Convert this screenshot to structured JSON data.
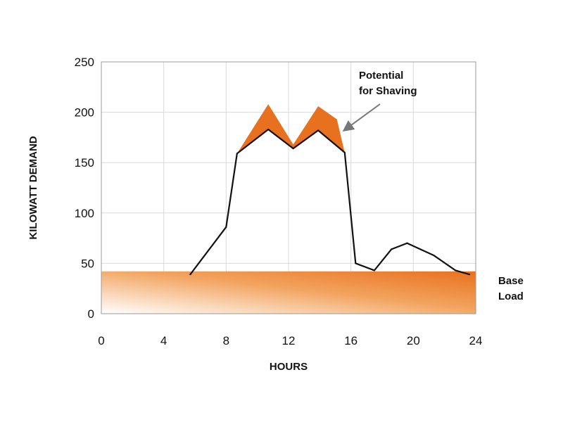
{
  "chart_data": {
    "type": "line",
    "title": "",
    "xlabel": "HOURS",
    "ylabel": "KILOWATT DEMAND",
    "xlim": [
      0,
      24
    ],
    "ylim": [
      0,
      250
    ],
    "xticks": [
      0,
      4,
      8,
      12,
      16,
      20,
      24
    ],
    "yticks": [
      0,
      50,
      100,
      150,
      200,
      250
    ],
    "grid": true,
    "legend": "none",
    "series": [
      {
        "points": [
          {
            "x": 5.7,
            "y": 39
          },
          {
            "x": 8,
            "y": 86
          },
          {
            "x": 8.7,
            "y": 159
          },
          {
            "x": 10.7,
            "y": 183
          },
          {
            "x": 12.3,
            "y": 164
          },
          {
            "x": 13.9,
            "y": 182
          },
          {
            "x": 15.6,
            "y": 160
          },
          {
            "x": 16.3,
            "y": 50
          },
          {
            "x": 17.5,
            "y": 43
          },
          {
            "x": 18.6,
            "y": 64
          },
          {
            "x": 19.6,
            "y": 70
          },
          {
            "x": 21.3,
            "y": 58
          },
          {
            "x": 22.7,
            "y": 43
          },
          {
            "x": 23.6,
            "y": 39
          }
        ],
        "color": "#111111"
      }
    ],
    "peak_band": {
      "upper": [
        {
          "x": 8.7,
          "y": 159
        },
        {
          "x": 10.7,
          "y": 208
        },
        {
          "x": 12.3,
          "y": 168
        },
        {
          "x": 13.9,
          "y": 206
        },
        {
          "x": 15.1,
          "y": 193
        },
        {
          "x": 15.6,
          "y": 160
        }
      ],
      "color": "#e8711f"
    },
    "base_load": {
      "y_min": 0,
      "y_max": 42,
      "color": "#e8711f"
    },
    "annotations": {
      "shaving_line1": "Potential",
      "shaving_line2": "for Shaving",
      "base_line1": "Base",
      "base_line2": "Load"
    }
  }
}
